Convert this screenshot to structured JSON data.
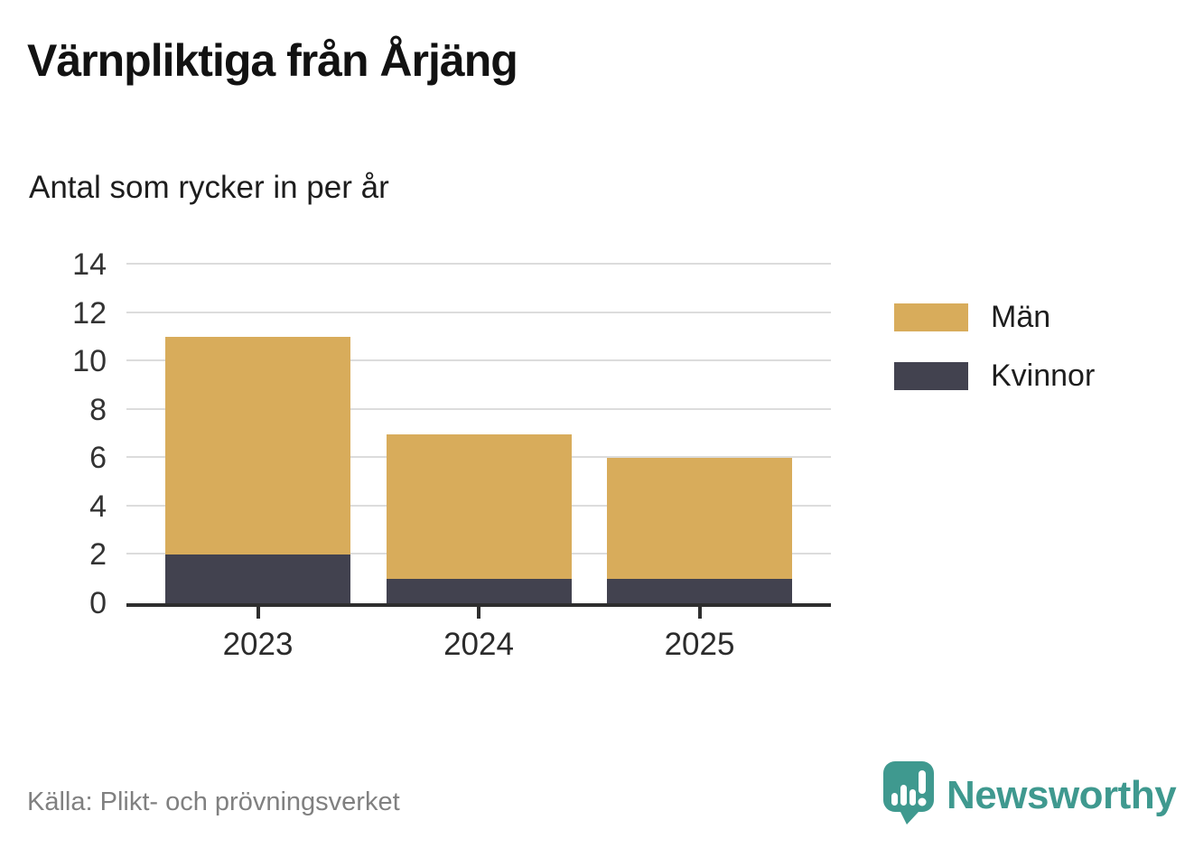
{
  "header": {
    "title": "Värnpliktiga från Årjäng",
    "subtitle": "Antal som rycker in per år"
  },
  "chart_data": {
    "type": "bar",
    "stacked": true,
    "title": "Värnpliktiga från Årjäng",
    "subtitle": "Antal som rycker in per år",
    "categories": [
      "2023",
      "2024",
      "2025"
    ],
    "series": [
      {
        "name": "Män",
        "color": "#D8AC5B",
        "values": [
          9,
          6,
          5
        ]
      },
      {
        "name": "Kvinnor",
        "color": "#42424F",
        "values": [
          2,
          1,
          1
        ]
      }
    ],
    "stack_bottom_to_top": [
      "Kvinnor",
      "Män"
    ],
    "totals": [
      11,
      7,
      6
    ],
    "xlabel": "",
    "ylabel": "",
    "ylim": [
      0,
      14
    ],
    "yticks": [
      0,
      2,
      4,
      6,
      8,
      10,
      12,
      14
    ],
    "grid": true,
    "legend_position": "right"
  },
  "footer": {
    "source": "Källa: Plikt- och prövningsverket",
    "brand": "Newsworthy"
  },
  "colors": {
    "men": "#D8AC5B",
    "women": "#42424F",
    "grid": "#DCDCDC",
    "axis": "#2E2E2E",
    "text": "#333333",
    "source_gray": "#808080",
    "brand_teal": "#3F998F"
  }
}
